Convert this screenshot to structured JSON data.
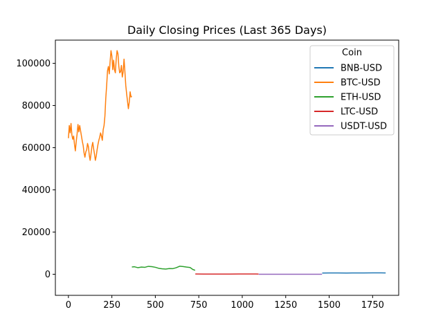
{
  "chart_data": {
    "type": "line",
    "title": "Daily Closing Prices (Last 365 Days)",
    "xlabel": "",
    "ylabel": "",
    "xlim": [
      -75,
      1900
    ],
    "ylim": [
      -10000,
      111000
    ],
    "xticks": [
      0,
      250,
      500,
      750,
      1000,
      1250,
      1500,
      1750
    ],
    "yticks": [
      0,
      20000,
      40000,
      60000,
      80000,
      100000
    ],
    "grid": false,
    "legend": {
      "title": "Coin",
      "placement": "top-right"
    },
    "series": [
      {
        "name": "BNB-USD",
        "color": "#1f77b4",
        "x": [
          1460,
          1500,
          1550,
          1600,
          1650,
          1700,
          1750,
          1800,
          1825
        ],
        "y": [
          580,
          620,
          600,
          590,
          610,
          630,
          640,
          650,
          620
        ]
      },
      {
        "name": "BTC-USD",
        "color": "#ff7f0e",
        "x": [
          0,
          5,
          10,
          15,
          20,
          25,
          30,
          35,
          40,
          45,
          50,
          55,
          60,
          65,
          70,
          75,
          80,
          85,
          90,
          95,
          100,
          105,
          110,
          115,
          120,
          125,
          130,
          135,
          140,
          145,
          150,
          155,
          160,
          165,
          170,
          175,
          180,
          185,
          190,
          195,
          200,
          205,
          210,
          215,
          220,
          225,
          230,
          235,
          240,
          245,
          250,
          255,
          260,
          265,
          270,
          275,
          280,
          285,
          290,
          295,
          300,
          305,
          310,
          315,
          320,
          325,
          330,
          335,
          340,
          345,
          350,
          355,
          360,
          364
        ],
        "y": [
          64500,
          70500,
          67000,
          71500,
          66000,
          64000,
          65500,
          61500,
          58500,
          63000,
          66500,
          71000,
          67500,
          70500,
          68000,
          65500,
          63000,
          61000,
          57500,
          55500,
          58000,
          59000,
          62000,
          60500,
          56500,
          54000,
          57000,
          60500,
          62500,
          59500,
          57000,
          54000,
          56000,
          59000,
          61500,
          63500,
          65000,
          67000,
          65500,
          63500,
          68500,
          70500,
          75000,
          83500,
          89500,
          96500,
          98500,
          95000,
          101000,
          106000,
          103500,
          97000,
          101500,
          97000,
          95500,
          102000,
          106000,
          104500,
          98500,
          95500,
          96000,
          99000,
          93500,
          96000,
          102000,
          96000,
          89500,
          85500,
          82000,
          78500,
          81500,
          86500,
          84000,
          84500
        ]
      },
      {
        "name": "ETH-USD",
        "color": "#2ca02c",
        "x": [
          365,
          380,
          400,
          420,
          440,
          460,
          480,
          500,
          520,
          540,
          560,
          580,
          600,
          620,
          640,
          660,
          680,
          700,
          715,
          729
        ],
        "y": [
          3450,
          3550,
          3100,
          3400,
          3300,
          3750,
          3600,
          3300,
          2800,
          2600,
          2450,
          2700,
          2650,
          3100,
          3800,
          3650,
          3400,
          3200,
          2300,
          1850
        ]
      },
      {
        "name": "LTC-USD",
        "color": "#d62728",
        "x": [
          730,
          780,
          830,
          880,
          930,
          980,
          1030,
          1080,
          1094
        ],
        "y": [
          110,
          100,
          95,
          90,
          100,
          110,
          120,
          110,
          100
        ]
      },
      {
        "name": "USDT-USD",
        "color": "#9467bd",
        "x": [
          1095,
          1150,
          1200,
          1250,
          1300,
          1350,
          1400,
          1459
        ],
        "y": [
          1,
          1,
          1,
          1,
          1,
          1,
          1,
          1
        ]
      }
    ]
  }
}
